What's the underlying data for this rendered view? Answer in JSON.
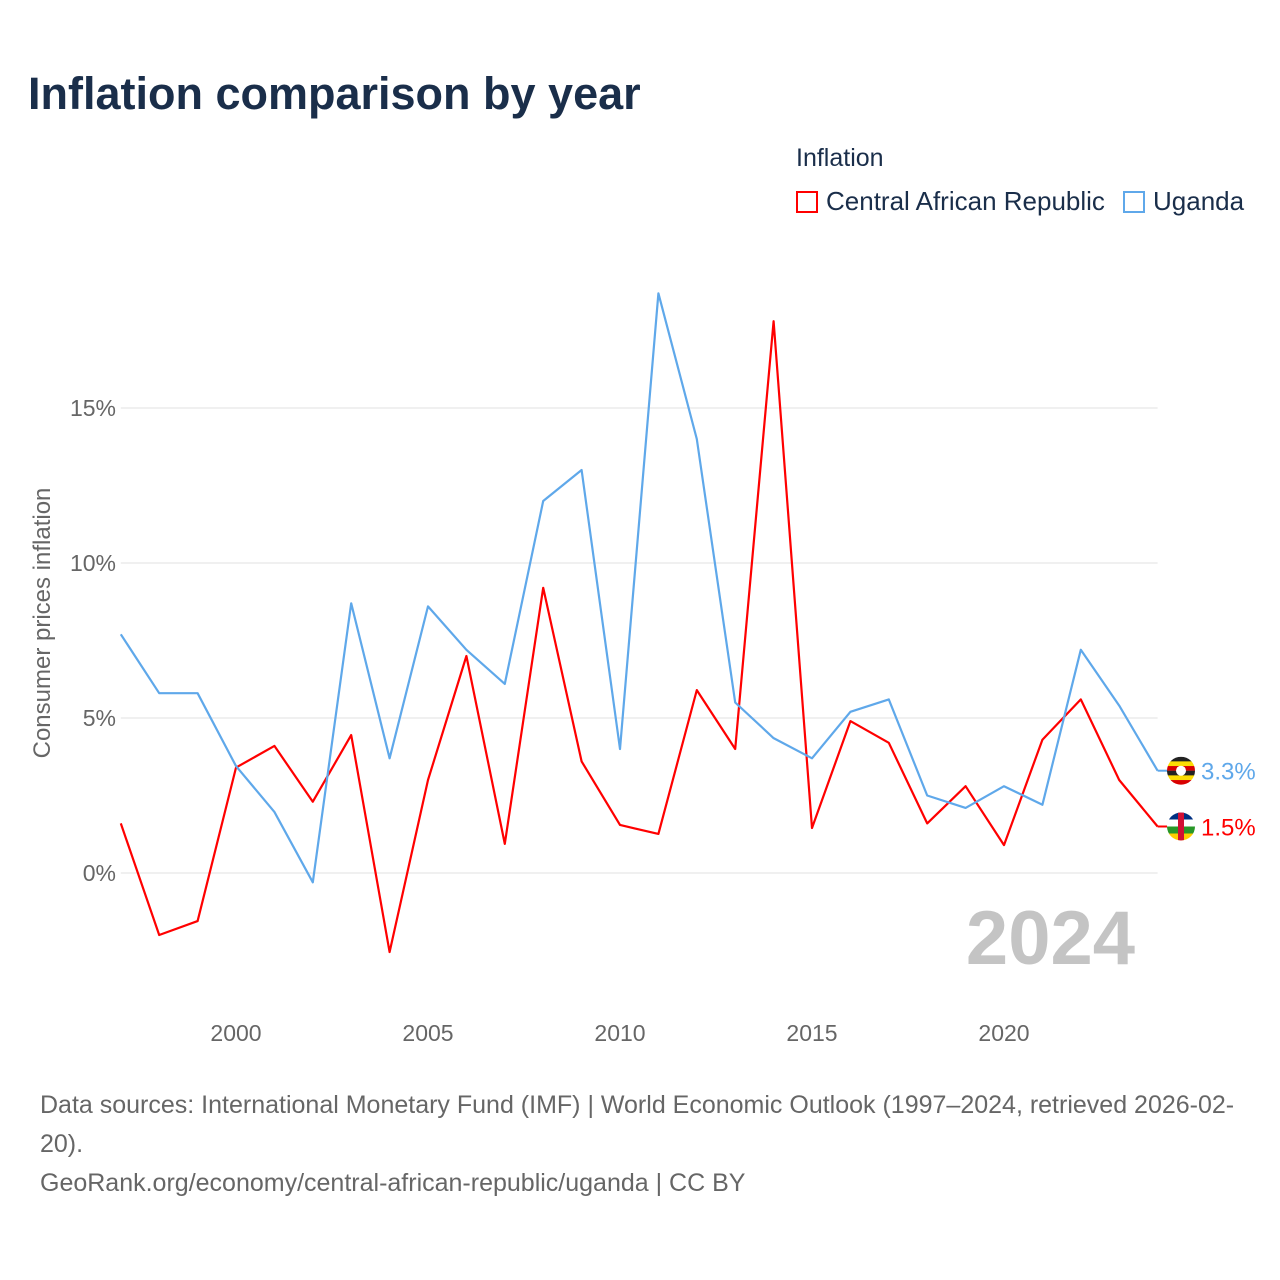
{
  "title": "Inflation comparison by year",
  "legend": {
    "title": "Inflation",
    "items": [
      {
        "label": "Central African Republic",
        "color": "#ff0000"
      },
      {
        "label": "Uganda",
        "color": "#5fa8ea"
      }
    ]
  },
  "footer": {
    "sources": "Data sources: International Monetary Fund (IMF) | World Economic Outlook (1997–2024, retrieved 2026-02-20).",
    "link": "GeoRank.org/economy/central-african-republic/uganda | CC BY"
  },
  "chart_data": {
    "type": "line",
    "title": "Inflation comparison by year",
    "xlabel": "",
    "ylabel": "Consumer prices inflation",
    "x": [
      1997,
      1998,
      1999,
      2000,
      2001,
      2002,
      2003,
      2004,
      2005,
      2006,
      2007,
      2008,
      2009,
      2010,
      2011,
      2012,
      2013,
      2014,
      2015,
      2016,
      2017,
      2018,
      2019,
      2020,
      2021,
      2022,
      2023,
      2024
    ],
    "xlim": [
      1997,
      2024
    ],
    "ylim": [
      -4,
      19
    ],
    "x_ticks": [
      "2000",
      "2005",
      "2010",
      "2015",
      "2020"
    ],
    "y_ticks": [
      "0%",
      "5%",
      "10%",
      "15%"
    ],
    "grid": true,
    "legend_position": "top-right",
    "watermark_year": "2024",
    "series": [
      {
        "name": "Central African Republic",
        "color": "#ff0000",
        "end_label": "1.5%",
        "values": [
          1.6,
          -2.0,
          -1.55,
          3.4,
          4.1,
          2.3,
          4.45,
          -2.55,
          3.0,
          7.0,
          0.94,
          9.2,
          3.6,
          1.55,
          1.26,
          5.9,
          4.0,
          17.8,
          1.45,
          4.9,
          4.2,
          1.6,
          2.8,
          0.9,
          4.3,
          5.6,
          3.0,
          1.5
        ]
      },
      {
        "name": "Uganda",
        "color": "#5fa8ea",
        "end_label": "3.3%",
        "values": [
          7.7,
          5.8,
          5.8,
          3.45,
          1.97,
          -0.3,
          8.7,
          3.7,
          8.6,
          7.2,
          6.1,
          12.0,
          13.0,
          4.0,
          18.7,
          14.0,
          5.5,
          4.35,
          3.7,
          5.2,
          5.6,
          2.5,
          2.1,
          2.8,
          2.2,
          7.2,
          5.4,
          3.3
        ]
      }
    ]
  }
}
